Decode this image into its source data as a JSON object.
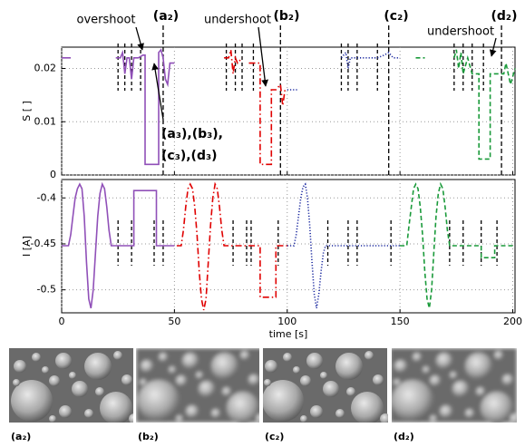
{
  "chart_data": [
    {
      "type": "line",
      "ylabel": "S [ ]",
      "xlim": [
        0,
        201
      ],
      "ylim": [
        0,
        0.024
      ],
      "xticks": [
        0,
        50,
        100,
        150,
        200
      ],
      "yticks": [
        0,
        0.01,
        0.02
      ],
      "show_xtick_labels": false,
      "grid": true,
      "series": [
        {
          "color": "#9050b8",
          "style": "solid",
          "x": [
            0,
            4,
            null,
            24,
            26,
            27,
            28,
            29,
            30,
            31,
            32,
            34,
            36,
            37,
            37,
            43,
            43,
            44,
            45,
            46,
            47,
            48,
            50
          ],
          "values": [
            0.022,
            0.022,
            null,
            0.022,
            0.022,
            0.023,
            0.019,
            0.022,
            0.022,
            0.018,
            0.022,
            0.022,
            0.0225,
            0.0225,
            0.002,
            0.002,
            0.023,
            0.0235,
            0.022,
            0.018,
            0.017,
            0.021,
            0.021
          ]
        },
        {
          "color": "#e00000",
          "style": "dashdot",
          "x": [
            72,
            74,
            75,
            76,
            77,
            78,
            80,
            null,
            83,
            86,
            88,
            88,
            93,
            93,
            95,
            97,
            98,
            99,
            100
          ],
          "values": [
            0.022,
            0.022,
            0.0235,
            0.019,
            0.022,
            0.021,
            0.022,
            null,
            0.021,
            0.021,
            0.021,
            0.002,
            0.002,
            0.016,
            0.016,
            0.017,
            0.013,
            0.016,
            0.016
          ]
        },
        {
          "color": "#1c2aa0",
          "style": "dotted",
          "x": [
            100,
            105,
            null,
            124,
            126,
            127,
            128,
            140,
            143,
            145,
            147,
            150
          ],
          "values": [
            0.016,
            0.016,
            null,
            0.022,
            0.023,
            0.02,
            0.022,
            0.022,
            0.0225,
            0.023,
            0.022,
            0.022
          ]
        },
        {
          "color": "#1a9a3a",
          "style": "dashed",
          "x": [
            157,
            161,
            null,
            174,
            175,
            176,
            177,
            178,
            180,
            182,
            185,
            185,
            190,
            190,
            196,
            197,
            199,
            201
          ],
          "values": [
            0.022,
            0.022,
            null,
            0.022,
            0.0235,
            0.02,
            0.023,
            0.019,
            0.022,
            0.019,
            0.019,
            0.003,
            0.003,
            0.019,
            0.019,
            0.021,
            0.017,
            0.02
          ]
        }
      ],
      "events": [
        25,
        28,
        31,
        35,
        73,
        77,
        80,
        85,
        124,
        127,
        131,
        140,
        174,
        178,
        182,
        187
      ],
      "sample_times": [
        45,
        97,
        145,
        195
      ],
      "annotations": [
        "overshoot",
        "(a₂)",
        "undershoot",
        "(b₂)",
        "(c₂)",
        "undershoot",
        "(d₂)",
        "(a₃),(b₃),",
        "(c₃),(d₃)"
      ]
    },
    {
      "type": "line",
      "ylabel": "I [A]",
      "xlabel": "time [s]",
      "xlim": [
        0,
        201
      ],
      "ylim": [
        -0.525,
        -0.38
      ],
      "xticks": [
        0,
        50,
        100,
        150,
        200
      ],
      "yticks": [
        -0.4,
        -0.45,
        -0.5
      ],
      "show_xtick_labels": true,
      "grid": true,
      "series": [
        {
          "color": "#9050b8",
          "style": "solid",
          "x": [
            0,
            3,
            4,
            5,
            6,
            7,
            8,
            9,
            10,
            11,
            12,
            13,
            14,
            15,
            16,
            17,
            18,
            19,
            20,
            21,
            22,
            32,
            32,
            42,
            42,
            50
          ],
          "values": [
            -0.452,
            -0.452,
            -0.44,
            -0.42,
            -0.4,
            -0.39,
            -0.385,
            -0.39,
            -0.42,
            -0.47,
            -0.51,
            -0.52,
            -0.5,
            -0.46,
            -0.42,
            -0.395,
            -0.385,
            -0.39,
            -0.41,
            -0.435,
            -0.452,
            -0.452,
            -0.392,
            -0.392,
            -0.452,
            -0.452
          ]
        },
        {
          "color": "#e00000",
          "style": "dashdot",
          "x": [
            51,
            53,
            54,
            55,
            56,
            57,
            58,
            59,
            60,
            61,
            62,
            63,
            64,
            65,
            66,
            67,
            68,
            69,
            70,
            71,
            72,
            88,
            88,
            95,
            95,
            100
          ],
          "values": [
            -0.452,
            -0.452,
            -0.435,
            -0.41,
            -0.39,
            -0.385,
            -0.39,
            -0.41,
            -0.44,
            -0.48,
            -0.51,
            -0.522,
            -0.51,
            -0.47,
            -0.43,
            -0.4,
            -0.385,
            -0.39,
            -0.41,
            -0.435,
            -0.452,
            -0.452,
            -0.508,
            -0.508,
            -0.452,
            -0.452
          ]
        },
        {
          "color": "#1c2aa0",
          "style": "dotted",
          "x": [
            100,
            103,
            104,
            105,
            106,
            107,
            108,
            109,
            110,
            111,
            112,
            113,
            114,
            115,
            116,
            117,
            150
          ],
          "values": [
            -0.452,
            -0.452,
            -0.44,
            -0.42,
            -0.4,
            -0.388,
            -0.385,
            -0.4,
            -0.43,
            -0.47,
            -0.505,
            -0.52,
            -0.505,
            -0.48,
            -0.46,
            -0.452,
            -0.452
          ]
        },
        {
          "color": "#1a9a3a",
          "style": "dashed",
          "x": [
            150,
            153,
            154,
            155,
            156,
            157,
            158,
            159,
            160,
            161,
            162,
            163,
            164,
            165,
            166,
            167,
            168,
            169,
            170,
            171,
            172,
            186,
            186,
            192,
            192,
            201
          ],
          "values": [
            -0.452,
            -0.452,
            -0.43,
            -0.41,
            -0.39,
            -0.385,
            -0.39,
            -0.41,
            -0.44,
            -0.48,
            -0.51,
            -0.52,
            -0.5,
            -0.46,
            -0.42,
            -0.395,
            -0.385,
            -0.39,
            -0.41,
            -0.435,
            -0.452,
            -0.452,
            -0.465,
            -0.465,
            -0.452,
            -0.452
          ]
        }
      ],
      "events": [
        25,
        31,
        41,
        45,
        76,
        82,
        84,
        96,
        118,
        127,
        131,
        146,
        172,
        178,
        186,
        193
      ]
    }
  ],
  "panels": [
    {
      "label": "(a₂)"
    },
    {
      "label": "(b₂)"
    },
    {
      "label": "(c₂)"
    },
    {
      "label": "(d₂)"
    }
  ]
}
